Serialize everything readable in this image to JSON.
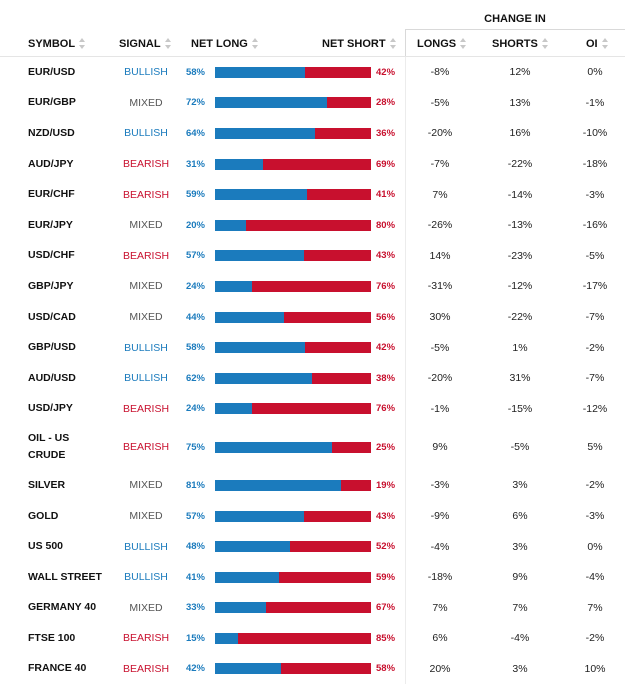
{
  "group_header": "CHANGE IN",
  "columns": {
    "symbol": "SYMBOL",
    "signal": "SIGNAL",
    "net_long": "NET LONG",
    "net_short": "NET SHORT",
    "longs": "LONGS",
    "shorts": "SHORTS",
    "oi": "OI"
  },
  "colors": {
    "long": "#1b7bbd",
    "short": "#c8102e",
    "bullish": "#1b7bbd",
    "bearish": "#c8102e",
    "mixed": "#555555"
  },
  "rows": [
    {
      "symbol": "EUR/USD",
      "signal": "BULLISH",
      "net_long": 58,
      "net_short": 42,
      "longs": "-8%",
      "shorts": "12%",
      "oi": "0%"
    },
    {
      "symbol": "EUR/GBP",
      "signal": "MIXED",
      "net_long": 72,
      "net_short": 28,
      "longs": "-5%",
      "shorts": "13%",
      "oi": "-1%"
    },
    {
      "symbol": "NZD/USD",
      "signal": "BULLISH",
      "net_long": 64,
      "net_short": 36,
      "longs": "-20%",
      "shorts": "16%",
      "oi": "-10%"
    },
    {
      "symbol": "AUD/JPY",
      "signal": "BEARISH",
      "net_long": 31,
      "net_short": 69,
      "longs": "-7%",
      "shorts": "-22%",
      "oi": "-18%"
    },
    {
      "symbol": "EUR/CHF",
      "signal": "BEARISH",
      "net_long": 59,
      "net_short": 41,
      "longs": "7%",
      "shorts": "-14%",
      "oi": "-3%"
    },
    {
      "symbol": "EUR/JPY",
      "signal": "MIXED",
      "net_long": 20,
      "net_short": 80,
      "longs": "-26%",
      "shorts": "-13%",
      "oi": "-16%"
    },
    {
      "symbol": "USD/CHF",
      "signal": "BEARISH",
      "net_long": 57,
      "net_short": 43,
      "longs": "14%",
      "shorts": "-23%",
      "oi": "-5%"
    },
    {
      "symbol": "GBP/JPY",
      "signal": "MIXED",
      "net_long": 24,
      "net_short": 76,
      "longs": "-31%",
      "shorts": "-12%",
      "oi": "-17%"
    },
    {
      "symbol": "USD/CAD",
      "signal": "MIXED",
      "net_long": 44,
      "net_short": 56,
      "longs": "30%",
      "shorts": "-22%",
      "oi": "-7%"
    },
    {
      "symbol": "GBP/USD",
      "signal": "BULLISH",
      "net_long": 58,
      "net_short": 42,
      "longs": "-5%",
      "shorts": "1%",
      "oi": "-2%"
    },
    {
      "symbol": "AUD/USD",
      "signal": "BULLISH",
      "net_long": 62,
      "net_short": 38,
      "longs": "-20%",
      "shorts": "31%",
      "oi": "-7%"
    },
    {
      "symbol": "USD/JPY",
      "signal": "BEARISH",
      "net_long": 24,
      "net_short": 76,
      "longs": "-1%",
      "shorts": "-15%",
      "oi": "-12%"
    },
    {
      "symbol": "OIL - US CRUDE",
      "signal": "BEARISH",
      "net_long": 75,
      "net_short": 25,
      "longs": "9%",
      "shorts": "-5%",
      "oi": "5%"
    },
    {
      "symbol": "SILVER",
      "signal": "MIXED",
      "net_long": 81,
      "net_short": 19,
      "longs": "-3%",
      "shorts": "3%",
      "oi": "-2%"
    },
    {
      "symbol": "GOLD",
      "signal": "MIXED",
      "net_long": 57,
      "net_short": 43,
      "longs": "-9%",
      "shorts": "6%",
      "oi": "-3%"
    },
    {
      "symbol": "US 500",
      "signal": "BULLISH",
      "net_long": 48,
      "net_short": 52,
      "longs": "-4%",
      "shorts": "3%",
      "oi": "0%"
    },
    {
      "symbol": "WALL STREET",
      "signal": "BULLISH",
      "net_long": 41,
      "net_short": 59,
      "longs": "-18%",
      "shorts": "9%",
      "oi": "-4%"
    },
    {
      "symbol": "GERMANY 40",
      "signal": "MIXED",
      "net_long": 33,
      "net_short": 67,
      "longs": "7%",
      "shorts": "7%",
      "oi": "7%"
    },
    {
      "symbol": "FTSE 100",
      "signal": "BEARISH",
      "net_long": 15,
      "net_short": 85,
      "longs": "6%",
      "shorts": "-4%",
      "oi": "-2%"
    },
    {
      "symbol": "FRANCE 40",
      "signal": "BEARISH",
      "net_long": 42,
      "net_short": 58,
      "longs": "20%",
      "shorts": "3%",
      "oi": "10%"
    }
  ]
}
